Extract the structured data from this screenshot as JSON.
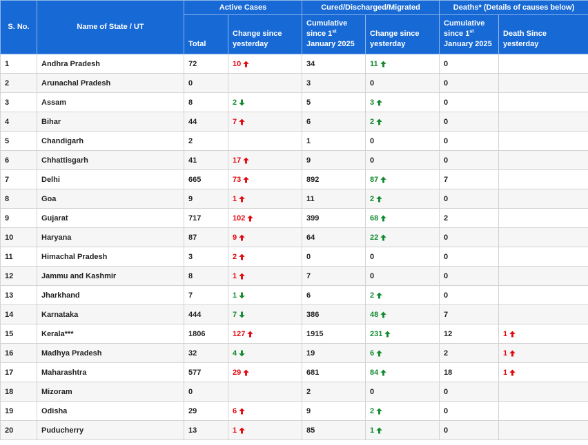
{
  "colors": {
    "header_bg": "#1769d5",
    "increase_red": "#e0080e",
    "green": "#118a2f"
  },
  "headers": {
    "sno": "S. No.",
    "state": "Name of State / UT",
    "active_group": "Active Cases",
    "cured_group": "Cured/Discharged/Migrated",
    "deaths_group": "Deaths* (Details of causes below)",
    "total": "Total",
    "change_since_yesterday": "Change since yesterday",
    "cumulative_prefix": "Cumulative since 1",
    "cumulative_sup": "st",
    "cumulative_suffix": "January 2025",
    "death_since_yesterday": "Death Since yesterday"
  },
  "rows": [
    {
      "sno": "1",
      "state": "Andhra Pradesh",
      "active": "72",
      "active_change": "10",
      "active_dir": "up-red",
      "cured": "34",
      "cured_change": "11",
      "cured_dir": "up-green",
      "deaths": "0",
      "death_change": "",
      "death_dir": ""
    },
    {
      "sno": "2",
      "state": "Arunachal Pradesh",
      "active": "0",
      "active_change": "",
      "active_dir": "",
      "cured": "3",
      "cured_change": "0",
      "cured_dir": "",
      "deaths": "0",
      "death_change": "",
      "death_dir": ""
    },
    {
      "sno": "3",
      "state": "Assam",
      "active": "8",
      "active_change": "2",
      "active_dir": "down-green",
      "cured": "5",
      "cured_change": "3",
      "cured_dir": "up-green",
      "deaths": "0",
      "death_change": "",
      "death_dir": ""
    },
    {
      "sno": "4",
      "state": "Bihar",
      "active": "44",
      "active_change": "7",
      "active_dir": "up-red",
      "cured": "6",
      "cured_change": "2",
      "cured_dir": "up-green",
      "deaths": "0",
      "death_change": "",
      "death_dir": ""
    },
    {
      "sno": "5",
      "state": "Chandigarh",
      "active": "2",
      "active_change": "",
      "active_dir": "",
      "cured": "1",
      "cured_change": "0",
      "cured_dir": "",
      "deaths": "0",
      "death_change": "",
      "death_dir": ""
    },
    {
      "sno": "6",
      "state": "Chhattisgarh",
      "active": "41",
      "active_change": "17",
      "active_dir": "up-red",
      "cured": "9",
      "cured_change": "0",
      "cured_dir": "",
      "deaths": "0",
      "death_change": "",
      "death_dir": ""
    },
    {
      "sno": "7",
      "state": "Delhi",
      "active": "665",
      "active_change": "73",
      "active_dir": "up-red",
      "cured": "892",
      "cured_change": "87",
      "cured_dir": "up-green",
      "deaths": "7",
      "death_change": "",
      "death_dir": ""
    },
    {
      "sno": "8",
      "state": "Goa",
      "active": "9",
      "active_change": "1",
      "active_dir": "up-red",
      "cured": "11",
      "cured_change": "2",
      "cured_dir": "up-green",
      "deaths": "0",
      "death_change": "",
      "death_dir": ""
    },
    {
      "sno": "9",
      "state": "Gujarat",
      "active": "717",
      "active_change": "102",
      "active_dir": "up-red",
      "cured": "399",
      "cured_change": "68",
      "cured_dir": "up-green",
      "deaths": "2",
      "death_change": "",
      "death_dir": ""
    },
    {
      "sno": "10",
      "state": "Haryana",
      "active": "87",
      "active_change": "9",
      "active_dir": "up-red",
      "cured": "64",
      "cured_change": "22",
      "cured_dir": "up-green",
      "deaths": "0",
      "death_change": "",
      "death_dir": ""
    },
    {
      "sno": "11",
      "state": "Himachal Pradesh",
      "active": "3",
      "active_change": "2",
      "active_dir": "up-red",
      "cured": "0",
      "cured_change": "0",
      "cured_dir": "",
      "deaths": "0",
      "death_change": "",
      "death_dir": ""
    },
    {
      "sno": "12",
      "state": "Jammu and Kashmir",
      "active": "8",
      "active_change": "1",
      "active_dir": "up-red",
      "cured": "7",
      "cured_change": "0",
      "cured_dir": "",
      "deaths": "0",
      "death_change": "",
      "death_dir": ""
    },
    {
      "sno": "13",
      "state": "Jharkhand",
      "active": "7",
      "active_change": "1",
      "active_dir": "down-green",
      "cured": "6",
      "cured_change": "2",
      "cured_dir": "up-green",
      "deaths": "0",
      "death_change": "",
      "death_dir": ""
    },
    {
      "sno": "14",
      "state": "Karnataka",
      "active": "444",
      "active_change": "7",
      "active_dir": "down-green",
      "cured": "386",
      "cured_change": "48",
      "cured_dir": "up-green",
      "deaths": "7",
      "death_change": "",
      "death_dir": ""
    },
    {
      "sno": "15",
      "state": "Kerala***",
      "active": "1806",
      "active_change": "127",
      "active_dir": "up-red",
      "cured": "1915",
      "cured_change": "231",
      "cured_dir": "up-green",
      "deaths": "12",
      "death_change": "1",
      "death_dir": "up-red"
    },
    {
      "sno": "16",
      "state": "Madhya Pradesh",
      "active": "32",
      "active_change": "4",
      "active_dir": "down-green",
      "cured": "19",
      "cured_change": "6",
      "cured_dir": "up-green",
      "deaths": "2",
      "death_change": "1",
      "death_dir": "up-red"
    },
    {
      "sno": "17",
      "state": "Maharashtra",
      "active": "577",
      "active_change": "29",
      "active_dir": "up-red",
      "cured": "681",
      "cured_change": "84",
      "cured_dir": "up-green",
      "deaths": "18",
      "death_change": "1",
      "death_dir": "up-red"
    },
    {
      "sno": "18",
      "state": "Mizoram",
      "active": "0",
      "active_change": "",
      "active_dir": "",
      "cured": "2",
      "cured_change": "0",
      "cured_dir": "",
      "deaths": "0",
      "death_change": "",
      "death_dir": ""
    },
    {
      "sno": "19",
      "state": "Odisha",
      "active": "29",
      "active_change": "6",
      "active_dir": "up-red",
      "cured": "9",
      "cured_change": "2",
      "cured_dir": "up-green",
      "deaths": "0",
      "death_change": "",
      "death_dir": ""
    },
    {
      "sno": "20",
      "state": "Puducherry",
      "active": "13",
      "active_change": "1",
      "active_dir": "up-red",
      "cured": "85",
      "cured_change": "1",
      "cured_dir": "up-green",
      "deaths": "0",
      "death_change": "",
      "death_dir": ""
    }
  ]
}
